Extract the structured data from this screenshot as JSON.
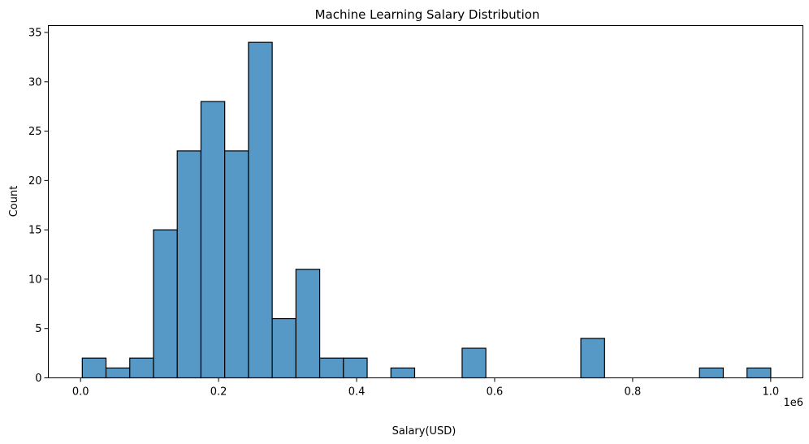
{
  "chart_data": {
    "type": "bar",
    "title": "Machine Learning Salary Distribution",
    "xlabel": "Salary(USD)",
    "ylabel": "Count",
    "x_offset_label": "1e6",
    "xlim": [
      -0.0467,
      1.0467
    ],
    "ylim": [
      0,
      35.7
    ],
    "x_ticks": [
      0.0,
      0.2,
      0.4,
      0.6,
      0.8,
      1.0
    ],
    "x_tick_labels": [
      "0.0",
      "0.2",
      "0.4",
      "0.6",
      "0.8",
      "1.0"
    ],
    "y_ticks": [
      0,
      5,
      10,
      15,
      20,
      25,
      30,
      35
    ],
    "y_tick_labels": [
      "0",
      "5",
      "10",
      "15",
      "20",
      "25",
      "30",
      "35"
    ],
    "bin_start": 0.0025,
    "bin_width": 0.0344,
    "counts": [
      2,
      1,
      2,
      15,
      23,
      28,
      23,
      34,
      6,
      11,
      2,
      2,
      0,
      1,
      0,
      0,
      3,
      0,
      0,
      0,
      0,
      4,
      0,
      0,
      0,
      0,
      1,
      0,
      1
    ],
    "grid": false,
    "bar_color": "#5799c6",
    "edge_color": "#000000"
  }
}
